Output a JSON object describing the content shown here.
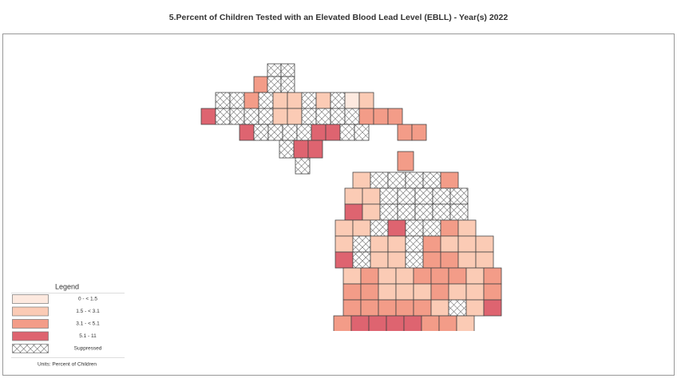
{
  "title": "5.Percent of Children Tested with an Elevated Blood Lead Level (EBLL) - Year(s) 2022",
  "legend": {
    "title": "Legend",
    "items": [
      {
        "label": "0 - < 1.5",
        "color": "#fde9df"
      },
      {
        "label": "1.5 - < 3.1",
        "color": "#fbcbb5"
      },
      {
        "label": "3.1 - < 5.1",
        "color": "#f39c88"
      },
      {
        "label": "5.1 - 11",
        "color": "#de6470"
      },
      {
        "label": "Suppressed"
      }
    ]
  },
  "units": "Units: Percent of Children"
}
